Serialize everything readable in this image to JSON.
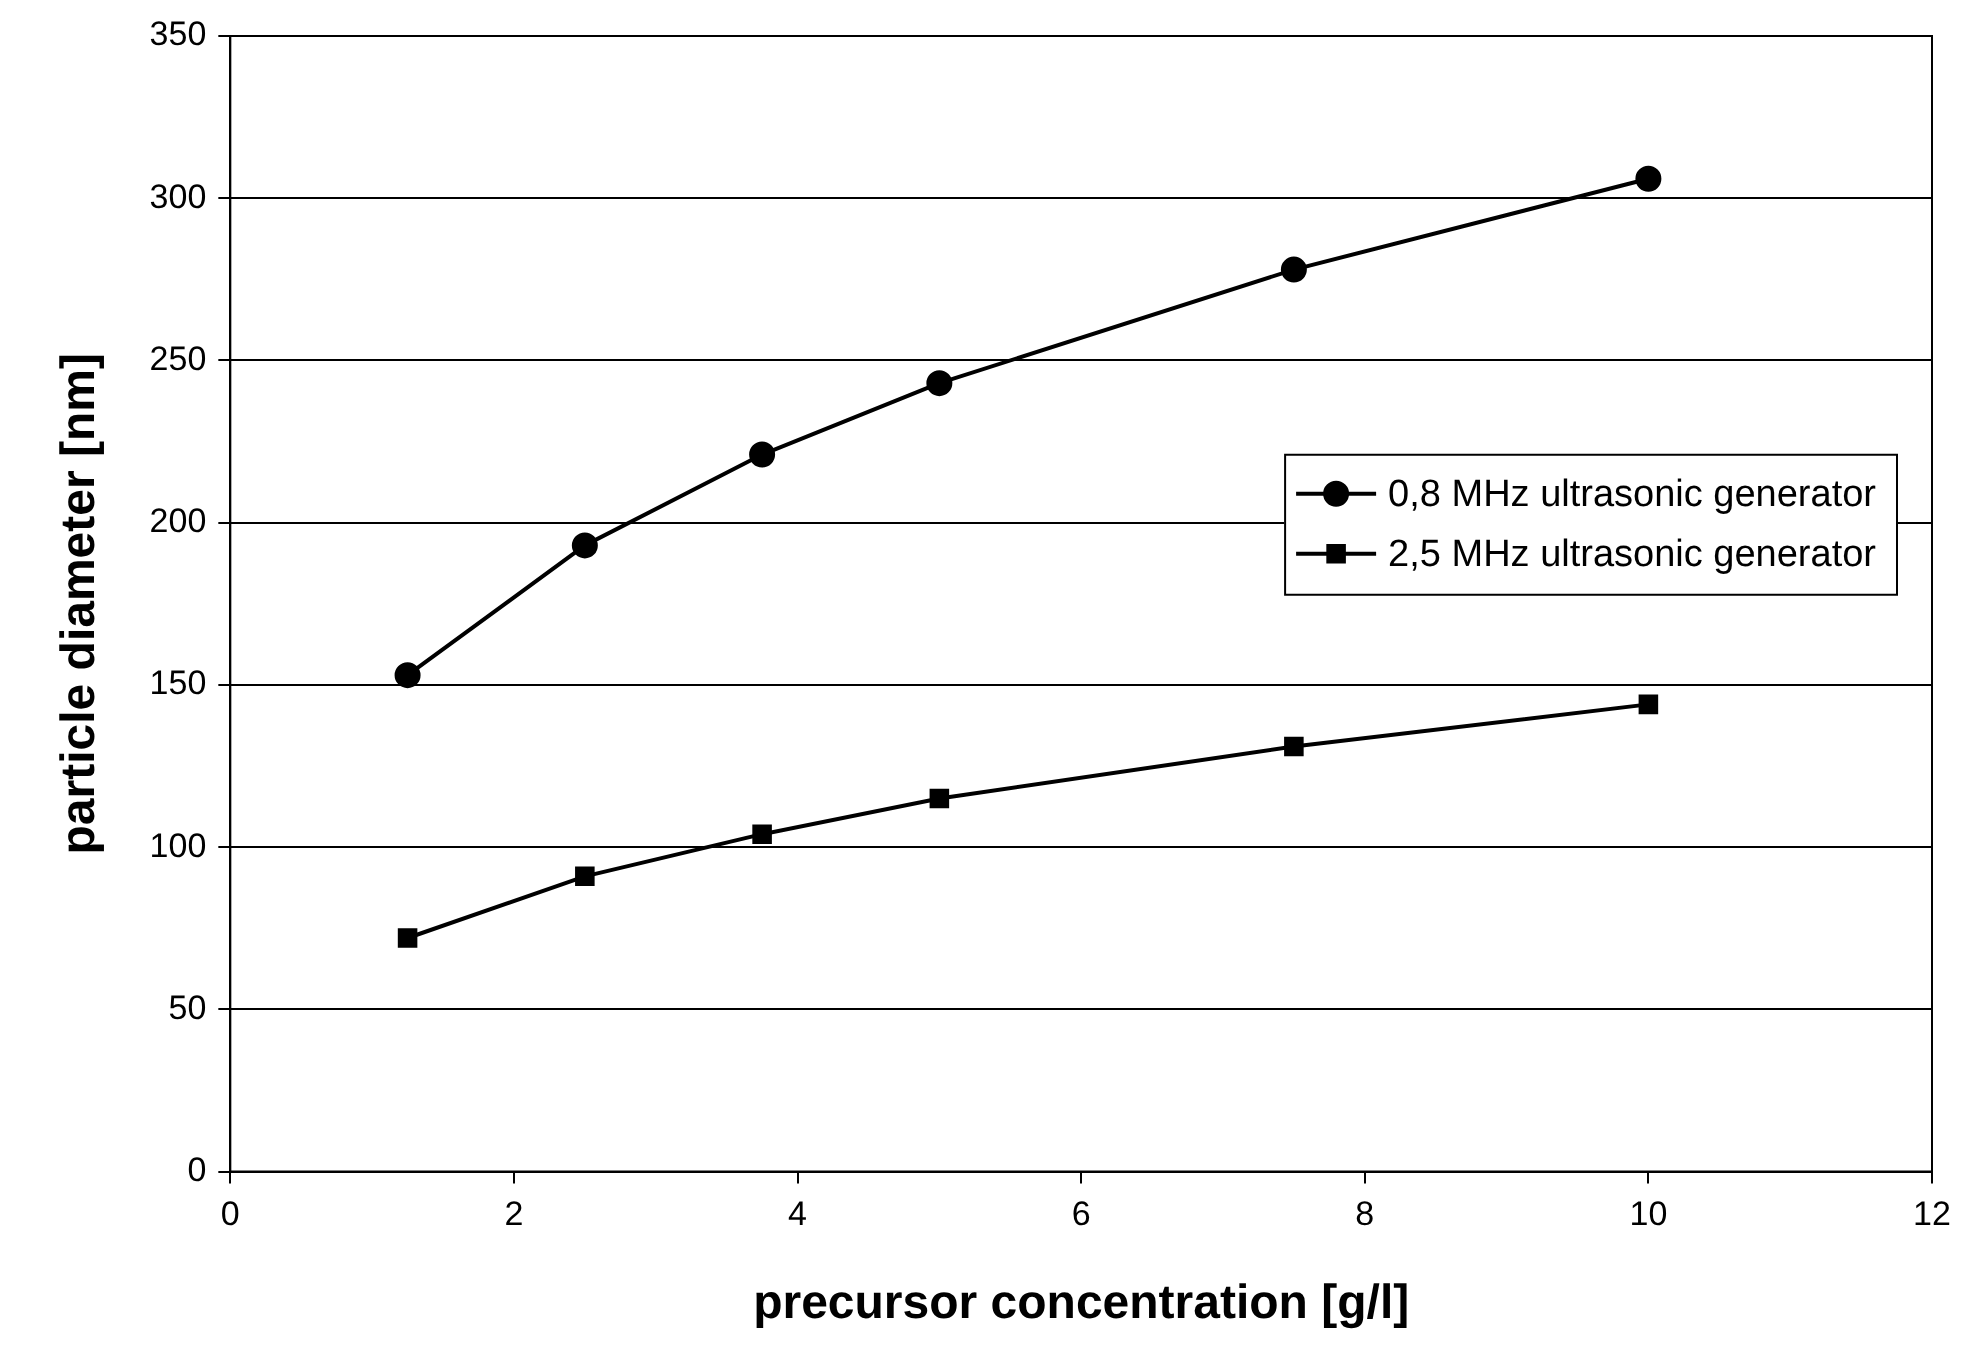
{
  "chart_data": {
    "type": "line",
    "xlabel": "precursor concentration [g/l]",
    "ylabel": "particle diameter [nm]",
    "x": [
      1.25,
      2.5,
      3.75,
      5,
      7.5,
      10
    ],
    "series": [
      {
        "name": "0,8 MHz ultrasonic generator",
        "color": "#000000",
        "marker": "circle",
        "values": [
          153,
          193,
          221,
          243,
          278,
          306
        ]
      },
      {
        "name": "2,5 MHz ultrasonic generator",
        "color": "#000000",
        "marker": "square",
        "values": [
          72,
          91,
          104,
          115,
          131,
          144
        ]
      }
    ],
    "xlim": [
      0,
      12
    ],
    "xticks": [
      0,
      2,
      4,
      6,
      8,
      10,
      12
    ],
    "ylim": [
      0,
      350
    ],
    "yticks": [
      0,
      50,
      100,
      150,
      200,
      250,
      300,
      350
    ],
    "grid": "y",
    "legend": "right",
    "line_style": "solid"
  }
}
